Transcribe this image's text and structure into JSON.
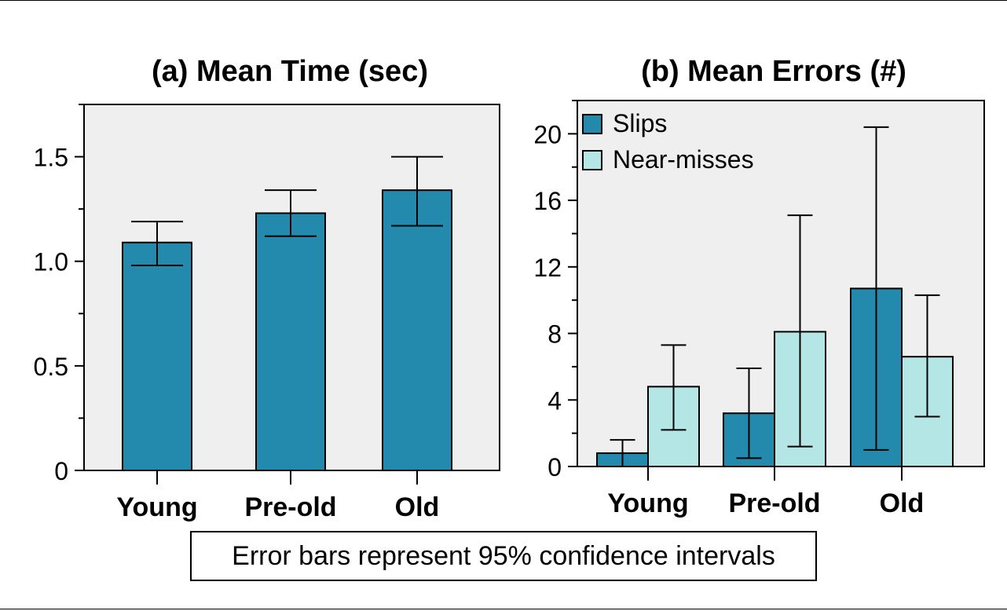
{
  "colors": {
    "panel_bg": "#efefef",
    "slips": "#238aae",
    "near_misses": "#b4e6e6",
    "axis": "#000000"
  },
  "footnote": "Error bars represent 95% confidence intervals",
  "chart_data": [
    {
      "type": "bar",
      "title": "(a) Mean Time (sec)",
      "categories": [
        "Young",
        "Pre-old",
        "Old"
      ],
      "series": [
        {
          "values": [
            1.09,
            1.23,
            1.34
          ],
          "ci_low": [
            0.98,
            1.12,
            1.17
          ],
          "ci_high": [
            1.19,
            1.34,
            1.5
          ]
        }
      ],
      "ylim": [
        0,
        1.75
      ],
      "yticks": [
        0,
        0.5,
        1.0,
        1.5
      ],
      "ytick_labels": [
        "0",
        "0.5",
        "1.0",
        "1.5"
      ],
      "grid": false
    },
    {
      "type": "bar",
      "title": "(b) Mean Errors (#)",
      "categories": [
        "Young",
        "Pre-old",
        "Old"
      ],
      "series": [
        {
          "name": "Slips",
          "values": [
            0.8,
            3.2,
            10.7
          ],
          "ci_low": [
            0.0,
            0.5,
            1.0
          ],
          "ci_high": [
            1.6,
            5.9,
            20.4
          ]
        },
        {
          "name": "Near-misses",
          "values": [
            4.8,
            8.1,
            6.6
          ],
          "ci_low": [
            2.2,
            1.2,
            3.0
          ],
          "ci_high": [
            7.3,
            15.1,
            10.3
          ]
        }
      ],
      "ylim": [
        0,
        22
      ],
      "yticks": [
        0,
        4,
        8,
        12,
        16,
        20
      ],
      "ytick_labels": [
        "0",
        "4",
        "8",
        "12",
        "16",
        "20"
      ],
      "legend": "top-left",
      "grid": false
    }
  ]
}
